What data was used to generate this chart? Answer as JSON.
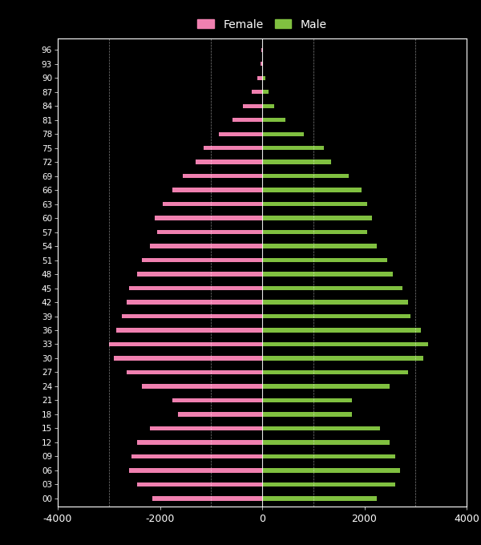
{
  "ages": [
    0,
    3,
    6,
    9,
    12,
    15,
    18,
    21,
    24,
    27,
    30,
    33,
    36,
    39,
    42,
    45,
    48,
    51,
    54,
    57,
    60,
    63,
    66,
    69,
    72,
    75,
    78,
    81,
    84,
    87,
    90,
    93,
    96
  ],
  "female": [
    2150,
    2450,
    2600,
    2550,
    2450,
    2200,
    1650,
    1750,
    2350,
    2650,
    2900,
    3000,
    2850,
    2750,
    2650,
    2600,
    2450,
    2350,
    2200,
    2050,
    2100,
    1950,
    1750,
    1550,
    1300,
    1150,
    850,
    580,
    380,
    210,
    95,
    35,
    8
  ],
  "male": [
    2250,
    2600,
    2700,
    2600,
    2500,
    2300,
    1750,
    1750,
    2500,
    2850,
    3150,
    3250,
    3100,
    2900,
    2850,
    2750,
    2550,
    2450,
    2250,
    2050,
    2150,
    2050,
    1950,
    1700,
    1350,
    1200,
    820,
    450,
    240,
    125,
    55,
    18,
    4
  ],
  "female_color": "#f080b0",
  "male_color": "#80c040",
  "background_color": "#000000",
  "text_color": "#ffffff",
  "grid_color": "#ffffff",
  "xlim": [
    -4000,
    4000
  ],
  "xticks": [
    -4000,
    -2000,
    0,
    2000,
    4000
  ],
  "xticklabels": [
    "-4000",
    "-2000",
    "0",
    "2000",
    "4000"
  ],
  "bar_height": 0.9,
  "figwidth": 6.0,
  "figheight": 6.8,
  "dpi": 100
}
